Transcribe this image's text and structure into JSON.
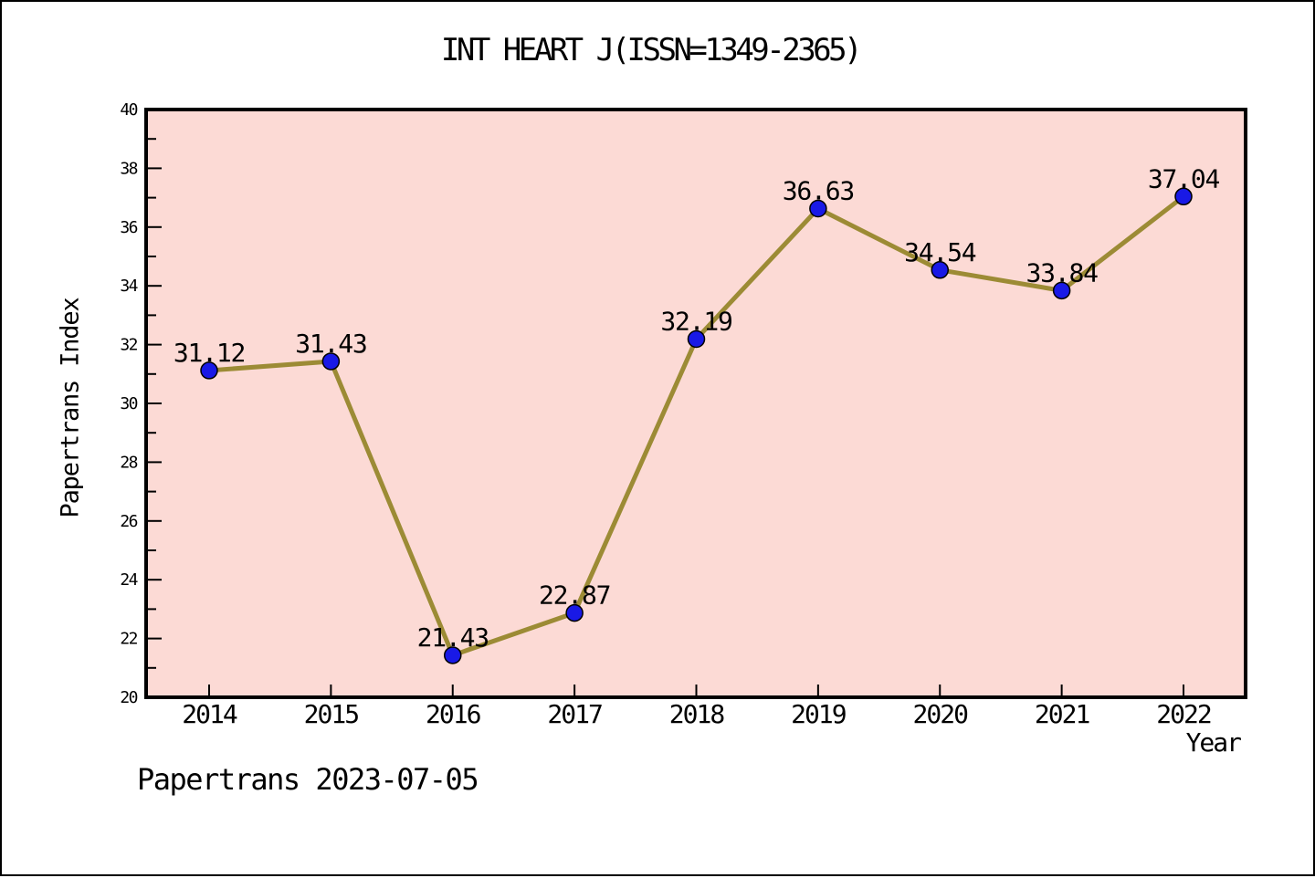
{
  "chart_data": {
    "type": "line",
    "title": "INT HEART J(ISSN=1349-2365)",
    "xlabel": "Year",
    "ylabel": "Papertrans Index",
    "footer": "Papertrans 2023-07-05",
    "categories": [
      "2014",
      "2015",
      "2016",
      "2017",
      "2018",
      "2019",
      "2020",
      "2021",
      "2022"
    ],
    "values": [
      31.12,
      31.43,
      21.43,
      22.87,
      32.19,
      36.63,
      34.54,
      33.84,
      37.04
    ],
    "point_labels": [
      "31.12",
      "31.43",
      "21.43",
      "22.87",
      "32.19",
      "36.63",
      "34.54",
      "33.84",
      "37.04"
    ],
    "ylim": [
      20,
      40
    ],
    "yticks": [
      20,
      22,
      24,
      26,
      28,
      30,
      32,
      34,
      36,
      38,
      40
    ],
    "yticks_minor": [
      21,
      23,
      25,
      27,
      29,
      31,
      33,
      35,
      37,
      39
    ],
    "grid": false,
    "legend_position": "none",
    "colors": {
      "figure_bg": "#ffffff",
      "plot_bg": "#fcdad5",
      "line": "#9c8b35",
      "marker_fill": "#1919e6",
      "marker_edge": "#000000",
      "axis": "#000000",
      "text": "#000000"
    }
  }
}
